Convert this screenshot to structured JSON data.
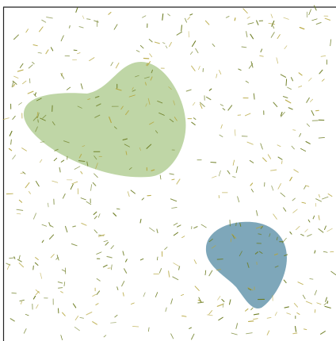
{
  "scene": {
    "background": "#ffffff",
    "frame_color": "#222222",
    "shapes": [
      {
        "name": "green-blob",
        "fill": "#bfd6a6"
      },
      {
        "name": "blue-blob",
        "fill": "#7ea7ba"
      }
    ],
    "grass_marks": {
      "color_dark": "#6b7b1f",
      "color_light": "#b5a53a"
    }
  }
}
